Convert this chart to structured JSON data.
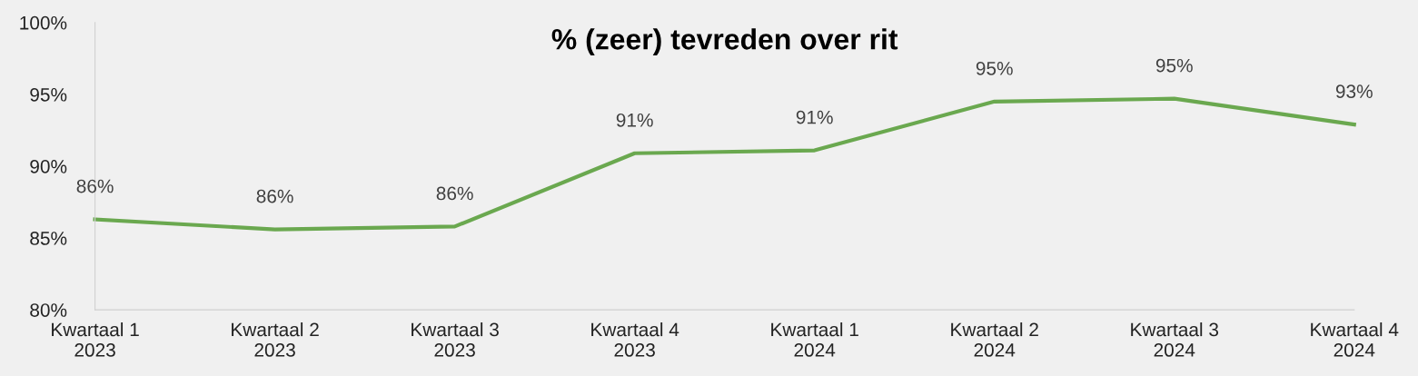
{
  "chart_data": {
    "type": "line",
    "title": "% (zeer) tevreden over rit",
    "categories": [
      "Kwartaal 1\n2023",
      "Kwartaal 2\n2023",
      "Kwartaal 3\n2023",
      "Kwartaal 4\n2023",
      "Kwartaal 1\n2024",
      "Kwartaal 2\n2024",
      "Kwartaal 3\n2024",
      "Kwartaal 4\n2024"
    ],
    "series": [
      {
        "color": "#6aa84f",
        "values": [
          86.3,
          85.6,
          85.8,
          90.9,
          91.1,
          94.5,
          94.7,
          92.9
        ],
        "value_labels": [
          "86%",
          "86%",
          "86%",
          "91%",
          "91%",
          "95%",
          "95%",
          "93%"
        ]
      }
    ],
    "ylim": [
      80,
      100
    ],
    "yticks": [
      {
        "value": 80,
        "label": "80%"
      },
      {
        "value": 85,
        "label": "85%"
      },
      {
        "value": 90,
        "label": "90%"
      },
      {
        "value": 95,
        "label": "95%"
      },
      {
        "value": 100,
        "label": "100%"
      }
    ],
    "grid": false,
    "legend": false,
    "marker": "none",
    "line_style": "solid"
  }
}
